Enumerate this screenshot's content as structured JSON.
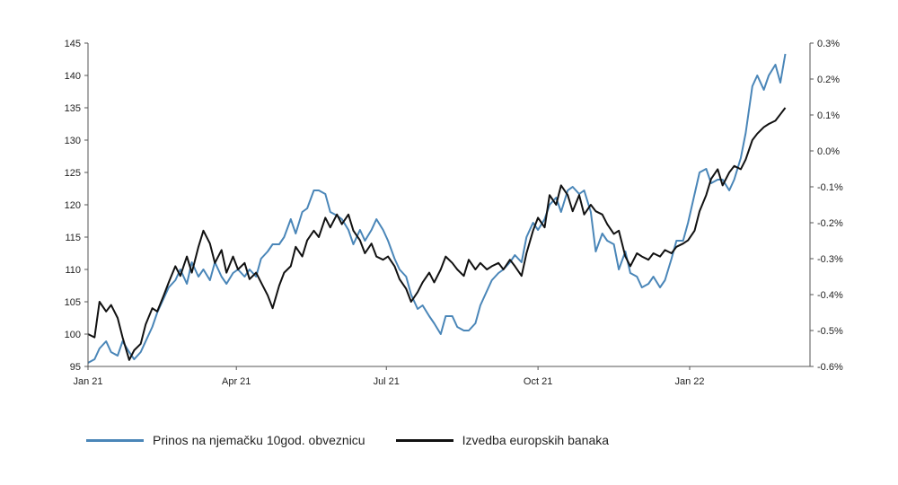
{
  "chart_data": {
    "type": "line",
    "title": "",
    "x_ticks": [
      "Jan 21",
      "Apr 21",
      "Jul 21",
      "Oct 21",
      "Jan 22"
    ],
    "x_range": [
      "2021-01-01",
      "2022-03-15"
    ],
    "y_left": {
      "range": [
        95,
        145
      ],
      "ticks": [
        "95",
        "100",
        "105",
        "110",
        "115",
        "120",
        "125",
        "130",
        "135",
        "140",
        "145"
      ]
    },
    "y_right": {
      "range": [
        -0.6,
        0.3
      ],
      "ticks": [
        "-0.6%",
        "-0.5%",
        "-0.4%",
        "-0.3%",
        "-0.2%",
        "-0.1%",
        "0.0%",
        "0.1%",
        "0.2%",
        "0.3%"
      ]
    },
    "grid": false,
    "legend_position": "bottom",
    "series": [
      {
        "name": "Prinos na njemačku 10god. obveznicu",
        "axis": "right",
        "color": "#4a86b8",
        "points": [
          [
            "2021-01-01",
            -0.59
          ],
          [
            "2021-01-05",
            -0.58
          ],
          [
            "2021-01-08",
            -0.55
          ],
          [
            "2021-01-12",
            -0.53
          ],
          [
            "2021-01-15",
            -0.56
          ],
          [
            "2021-01-19",
            -0.57
          ],
          [
            "2021-01-22",
            -0.53
          ],
          [
            "2021-01-26",
            -0.56
          ],
          [
            "2021-01-29",
            -0.58
          ],
          [
            "2021-02-02",
            -0.56
          ],
          [
            "2021-02-05",
            -0.53
          ],
          [
            "2021-02-09",
            -0.49
          ],
          [
            "2021-02-12",
            -0.45
          ],
          [
            "2021-02-16",
            -0.41
          ],
          [
            "2021-02-19",
            -0.38
          ],
          [
            "2021-02-23",
            -0.36
          ],
          [
            "2021-02-26",
            -0.33
          ],
          [
            "2021-03-02",
            -0.37
          ],
          [
            "2021-03-05",
            -0.31
          ],
          [
            "2021-03-09",
            -0.35
          ],
          [
            "2021-03-12",
            -0.33
          ],
          [
            "2021-03-16",
            -0.36
          ],
          [
            "2021-03-19",
            -0.31
          ],
          [
            "2021-03-23",
            -0.35
          ],
          [
            "2021-03-26",
            -0.37
          ],
          [
            "2021-03-30",
            -0.34
          ],
          [
            "2021-04-02",
            -0.33
          ],
          [
            "2021-04-06",
            -0.35
          ],
          [
            "2021-04-09",
            -0.33
          ],
          [
            "2021-04-13",
            -0.35
          ],
          [
            "2021-04-16",
            -0.3
          ],
          [
            "2021-04-20",
            -0.28
          ],
          [
            "2021-04-23",
            -0.26
          ],
          [
            "2021-04-27",
            -0.26
          ],
          [
            "2021-04-30",
            -0.24
          ],
          [
            "2021-05-04",
            -0.19
          ],
          [
            "2021-05-07",
            -0.23
          ],
          [
            "2021-05-11",
            -0.17
          ],
          [
            "2021-05-14",
            -0.16
          ],
          [
            "2021-05-18",
            -0.11
          ],
          [
            "2021-05-21",
            -0.11
          ],
          [
            "2021-05-25",
            -0.12
          ],
          [
            "2021-05-28",
            -0.17
          ],
          [
            "2021-06-01",
            -0.18
          ],
          [
            "2021-06-04",
            -0.19
          ],
          [
            "2021-06-08",
            -0.22
          ],
          [
            "2021-06-11",
            -0.26
          ],
          [
            "2021-06-15",
            -0.22
          ],
          [
            "2021-06-18",
            -0.25
          ],
          [
            "2021-06-22",
            -0.22
          ],
          [
            "2021-06-25",
            -0.19
          ],
          [
            "2021-06-29",
            -0.22
          ],
          [
            "2021-07-02",
            -0.25
          ],
          [
            "2021-07-06",
            -0.3
          ],
          [
            "2021-07-09",
            -0.33
          ],
          [
            "2021-07-13",
            -0.35
          ],
          [
            "2021-07-16",
            -0.4
          ],
          [
            "2021-07-20",
            -0.44
          ],
          [
            "2021-07-23",
            -0.43
          ],
          [
            "2021-07-27",
            -0.46
          ],
          [
            "2021-07-30",
            -0.48
          ],
          [
            "2021-08-03",
            -0.51
          ],
          [
            "2021-08-06",
            -0.46
          ],
          [
            "2021-08-10",
            -0.46
          ],
          [
            "2021-08-13",
            -0.49
          ],
          [
            "2021-08-17",
            -0.5
          ],
          [
            "2021-08-20",
            -0.5
          ],
          [
            "2021-08-24",
            -0.48
          ],
          [
            "2021-08-27",
            -0.43
          ],
          [
            "2021-08-31",
            -0.39
          ],
          [
            "2021-09-03",
            -0.36
          ],
          [
            "2021-09-07",
            -0.34
          ],
          [
            "2021-09-10",
            -0.33
          ],
          [
            "2021-09-14",
            -0.31
          ],
          [
            "2021-09-17",
            -0.29
          ],
          [
            "2021-09-21",
            -0.31
          ],
          [
            "2021-09-24",
            -0.24
          ],
          [
            "2021-09-28",
            -0.2
          ],
          [
            "2021-10-01",
            -0.22
          ],
          [
            "2021-10-05",
            -0.19
          ],
          [
            "2021-10-08",
            -0.15
          ],
          [
            "2021-10-12",
            -0.13
          ],
          [
            "2021-10-15",
            -0.17
          ],
          [
            "2021-10-19",
            -0.11
          ],
          [
            "2021-10-22",
            -0.1
          ],
          [
            "2021-10-26",
            -0.12
          ],
          [
            "2021-10-29",
            -0.11
          ],
          [
            "2021-11-02",
            -0.17
          ],
          [
            "2021-11-05",
            -0.28
          ],
          [
            "2021-11-09",
            -0.23
          ],
          [
            "2021-11-12",
            -0.25
          ],
          [
            "2021-11-16",
            -0.26
          ],
          [
            "2021-11-19",
            -0.33
          ],
          [
            "2021-11-23",
            -0.28
          ],
          [
            "2021-11-26",
            -0.34
          ],
          [
            "2021-11-30",
            -0.35
          ],
          [
            "2021-12-03",
            -0.38
          ],
          [
            "2021-12-07",
            -0.37
          ],
          [
            "2021-12-10",
            -0.35
          ],
          [
            "2021-12-14",
            -0.38
          ],
          [
            "2021-12-17",
            -0.36
          ],
          [
            "2021-12-21",
            -0.3
          ],
          [
            "2021-12-24",
            -0.25
          ],
          [
            "2021-12-28",
            -0.25
          ],
          [
            "2021-12-31",
            -0.2
          ],
          [
            "2022-01-04",
            -0.12
          ],
          [
            "2022-01-07",
            -0.06
          ],
          [
            "2022-01-11",
            -0.05
          ],
          [
            "2022-01-14",
            -0.09
          ],
          [
            "2022-01-18",
            -0.08
          ],
          [
            "2022-01-21",
            -0.08
          ],
          [
            "2022-01-25",
            -0.11
          ],
          [
            "2022-01-28",
            -0.08
          ],
          [
            "2022-02-01",
            -0.02
          ],
          [
            "2022-02-04",
            0.05
          ],
          [
            "2022-02-08",
            0.18
          ],
          [
            "2022-02-11",
            0.21
          ],
          [
            "2022-02-15",
            0.17
          ],
          [
            "2022-02-18",
            0.21
          ],
          [
            "2022-02-22",
            0.24
          ],
          [
            "2022-02-25",
            0.19
          ],
          [
            "2022-02-28",
            0.27
          ]
        ]
      },
      {
        "name": "Izvedba europskih banaka",
        "axis": "left",
        "color": "#111111",
        "points": [
          [
            "2021-01-01",
            100.0
          ],
          [
            "2021-01-05",
            99.5
          ],
          [
            "2021-01-08",
            105.0
          ],
          [
            "2021-01-12",
            103.5
          ],
          [
            "2021-01-15",
            104.5
          ],
          [
            "2021-01-19",
            102.5
          ],
          [
            "2021-01-22",
            99.5
          ],
          [
            "2021-01-26",
            96.0
          ],
          [
            "2021-01-29",
            97.5
          ],
          [
            "2021-02-02",
            98.5
          ],
          [
            "2021-02-05",
            101.5
          ],
          [
            "2021-02-09",
            104.0
          ],
          [
            "2021-02-12",
            103.5
          ],
          [
            "2021-02-16",
            106.0
          ],
          [
            "2021-02-19",
            108.0
          ],
          [
            "2021-02-23",
            110.5
          ],
          [
            "2021-02-26",
            109.0
          ],
          [
            "2021-03-02",
            112.0
          ],
          [
            "2021-03-05",
            109.5
          ],
          [
            "2021-03-09",
            113.5
          ],
          [
            "2021-03-12",
            116.0
          ],
          [
            "2021-03-16",
            114.0
          ],
          [
            "2021-03-19",
            111.0
          ],
          [
            "2021-03-23",
            113.0
          ],
          [
            "2021-03-26",
            109.5
          ],
          [
            "2021-03-30",
            112.0
          ],
          [
            "2021-04-02",
            110.0
          ],
          [
            "2021-04-06",
            111.0
          ],
          [
            "2021-04-09",
            108.5
          ],
          [
            "2021-04-13",
            109.5
          ],
          [
            "2021-04-16",
            108.0
          ],
          [
            "2021-04-20",
            106.0
          ],
          [
            "2021-04-23",
            104.0
          ],
          [
            "2021-04-27",
            107.5
          ],
          [
            "2021-04-30",
            109.5
          ],
          [
            "2021-05-04",
            110.5
          ],
          [
            "2021-05-07",
            113.5
          ],
          [
            "2021-05-11",
            112.0
          ],
          [
            "2021-05-14",
            114.5
          ],
          [
            "2021-05-18",
            116.0
          ],
          [
            "2021-05-21",
            115.0
          ],
          [
            "2021-05-25",
            118.0
          ],
          [
            "2021-05-28",
            116.5
          ],
          [
            "2021-06-01",
            118.5
          ],
          [
            "2021-06-04",
            117.0
          ],
          [
            "2021-06-08",
            118.5
          ],
          [
            "2021-06-11",
            116.0
          ],
          [
            "2021-06-15",
            114.5
          ],
          [
            "2021-06-18",
            112.5
          ],
          [
            "2021-06-22",
            114.0
          ],
          [
            "2021-06-25",
            112.0
          ],
          [
            "2021-06-29",
            111.5
          ],
          [
            "2021-07-02",
            112.0
          ],
          [
            "2021-07-06",
            110.5
          ],
          [
            "2021-07-09",
            108.5
          ],
          [
            "2021-07-13",
            107.0
          ],
          [
            "2021-07-16",
            105.0
          ],
          [
            "2021-07-20",
            106.5
          ],
          [
            "2021-07-23",
            108.0
          ],
          [
            "2021-07-27",
            109.5
          ],
          [
            "2021-07-30",
            108.0
          ],
          [
            "2021-08-03",
            110.0
          ],
          [
            "2021-08-06",
            112.0
          ],
          [
            "2021-08-10",
            111.0
          ],
          [
            "2021-08-13",
            110.0
          ],
          [
            "2021-08-17",
            109.0
          ],
          [
            "2021-08-20",
            111.5
          ],
          [
            "2021-08-24",
            110.0
          ],
          [
            "2021-08-27",
            111.0
          ],
          [
            "2021-08-31",
            110.0
          ],
          [
            "2021-09-03",
            110.5
          ],
          [
            "2021-09-07",
            111.0
          ],
          [
            "2021-09-10",
            110.0
          ],
          [
            "2021-09-14",
            111.5
          ],
          [
            "2021-09-17",
            110.5
          ],
          [
            "2021-09-21",
            109.0
          ],
          [
            "2021-09-24",
            112.5
          ],
          [
            "2021-09-28",
            116.0
          ],
          [
            "2021-10-01",
            118.0
          ],
          [
            "2021-10-05",
            116.5
          ],
          [
            "2021-10-08",
            121.5
          ],
          [
            "2021-10-12",
            120.0
          ],
          [
            "2021-10-15",
            123.0
          ],
          [
            "2021-10-19",
            121.5
          ],
          [
            "2021-10-22",
            119.0
          ],
          [
            "2021-10-26",
            121.5
          ],
          [
            "2021-10-29",
            118.5
          ],
          [
            "2021-11-02",
            120.0
          ],
          [
            "2021-11-05",
            119.0
          ],
          [
            "2021-11-09",
            118.5
          ],
          [
            "2021-11-12",
            117.0
          ],
          [
            "2021-11-16",
            115.5
          ],
          [
            "2021-11-19",
            116.0
          ],
          [
            "2021-11-23",
            112.0
          ],
          [
            "2021-11-26",
            110.5
          ],
          [
            "2021-11-30",
            112.5
          ],
          [
            "2021-12-03",
            112.0
          ],
          [
            "2021-12-07",
            111.5
          ],
          [
            "2021-12-10",
            112.5
          ],
          [
            "2021-12-14",
            112.0
          ],
          [
            "2021-12-17",
            113.0
          ],
          [
            "2021-12-21",
            112.5
          ],
          [
            "2021-12-24",
            113.5
          ],
          [
            "2021-12-28",
            114.0
          ],
          [
            "2021-12-31",
            114.5
          ],
          [
            "2022-01-04",
            116.0
          ],
          [
            "2022-01-07",
            119.0
          ],
          [
            "2022-01-11",
            121.5
          ],
          [
            "2022-01-14",
            124.0
          ],
          [
            "2022-01-18",
            125.5
          ],
          [
            "2022-01-21",
            123.0
          ],
          [
            "2022-01-25",
            125.0
          ],
          [
            "2022-01-28",
            126.0
          ],
          [
            "2022-02-01",
            125.5
          ],
          [
            "2022-02-04",
            127.0
          ],
          [
            "2022-02-08",
            130.0
          ],
          [
            "2022-02-11",
            131.0
          ],
          [
            "2022-02-15",
            132.0
          ],
          [
            "2022-02-18",
            132.5
          ],
          [
            "2022-02-22",
            133.0
          ],
          [
            "2022-02-25",
            134.0
          ],
          [
            "2022-02-28",
            135.0
          ]
        ]
      }
    ]
  }
}
